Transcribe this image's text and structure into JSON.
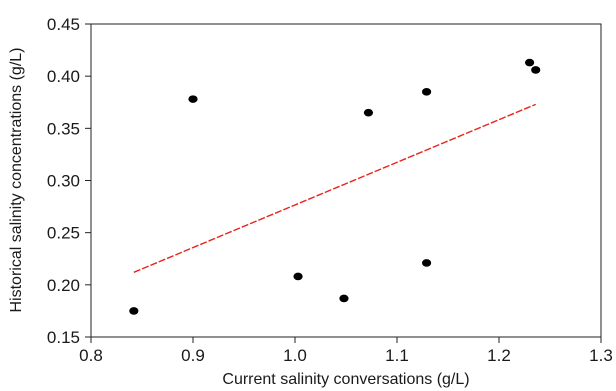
{
  "chart_data": {
    "type": "scatter",
    "title": "",
    "xlabel": "Current salinity conversations (g/L)",
    "ylabel": "Historical salinity concentrations (g/L)",
    "xlim": [
      0.8,
      1.3
    ],
    "ylim": [
      0.15,
      0.45
    ],
    "xticks": [
      "0.8",
      "0.9",
      "1.0",
      "1.1",
      "1.2",
      "1.3"
    ],
    "yticks": [
      "0.15",
      "0.20",
      "0.25",
      "0.30",
      "0.35",
      "0.40",
      "0.45"
    ],
    "grid": false,
    "series": [
      {
        "type": "scatter",
        "color": "#000000",
        "points": [
          {
            "x": 0.842,
            "y": 0.175
          },
          {
            "x": 0.9,
            "y": 0.378
          },
          {
            "x": 1.003,
            "y": 0.208
          },
          {
            "x": 1.048,
            "y": 0.187
          },
          {
            "x": 1.072,
            "y": 0.365
          },
          {
            "x": 1.129,
            "y": 0.385
          },
          {
            "x": 1.129,
            "y": 0.221
          },
          {
            "x": 1.23,
            "y": 0.413
          },
          {
            "x": 1.236,
            "y": 0.406
          }
        ]
      },
      {
        "type": "line",
        "color": "#e8231a",
        "style": "dashed",
        "points": [
          {
            "x": 0.842,
            "y": 0.212
          },
          {
            "x": 1.236,
            "y": 0.373
          }
        ]
      }
    ]
  }
}
